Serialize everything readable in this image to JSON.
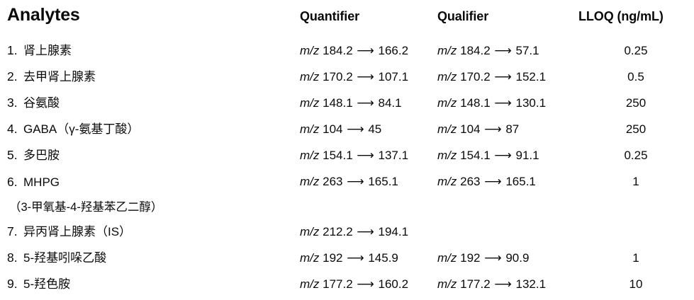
{
  "colors": {
    "text": "#0a0a0a",
    "background": "#ffffff"
  },
  "glyphs": {
    "arrow": "⟶"
  },
  "table": {
    "headers": {
      "analytes": "Analytes",
      "quantifier": "Quantifier",
      "qualifier": "Qualifier",
      "lloq": "LLOQ (ng/mL)"
    },
    "mz_label": "m/z",
    "rows": [
      {
        "num": "1.",
        "name": "肾上腺素",
        "quant_from": "184.2",
        "quant_to": "166.2",
        "qual_from": "184.2",
        "qual_to": "57.1",
        "lloq": "0.25"
      },
      {
        "num": "2.",
        "name": "去甲肾上腺素",
        "quant_from": "170.2",
        "quant_to": "107.1",
        "qual_from": "170.2",
        "qual_to": "152.1",
        "lloq": "0.5"
      },
      {
        "num": "3.",
        "name": "谷氨酸",
        "quant_from": "148.1",
        "quant_to": "84.1",
        "qual_from": "148.1",
        "qual_to": "130.1",
        "lloq": "250"
      },
      {
        "num": "4.",
        "name": "GABA（γ-氨基丁酸）",
        "quant_from": "104",
        "quant_to": "45",
        "qual_from": "104",
        "qual_to": "87",
        "lloq": "250"
      },
      {
        "num": "5.",
        "name": "多巴胺",
        "quant_from": "154.1",
        "quant_to": "137.1",
        "qual_from": "154.1",
        "qual_to": "91.1",
        "lloq": "0.25"
      },
      {
        "num": "6.",
        "name": "MHPG",
        "name_line2": "（3-甲氧基-4-羟基苯乙二醇）",
        "quant_from": "263",
        "quant_to": "165.1",
        "qual_from": "263",
        "qual_to": "165.1",
        "lloq": "1"
      },
      {
        "num": "7.",
        "name": "异丙肾上腺素（IS）",
        "quant_from": "212.2",
        "quant_to": "194.1"
      },
      {
        "num": "8.",
        "name": "5-羟基吲哚乙酸",
        "quant_from": "192",
        "quant_to": "145.9",
        "qual_from": "192",
        "qual_to": "90.9",
        "lloq": "1"
      },
      {
        "num": "9.",
        "name": "5-羟色胺",
        "quant_from": "177.2",
        "quant_to": "160.2",
        "qual_from": "177.2",
        "qual_to": "132.1",
        "lloq": "10"
      }
    ]
  }
}
